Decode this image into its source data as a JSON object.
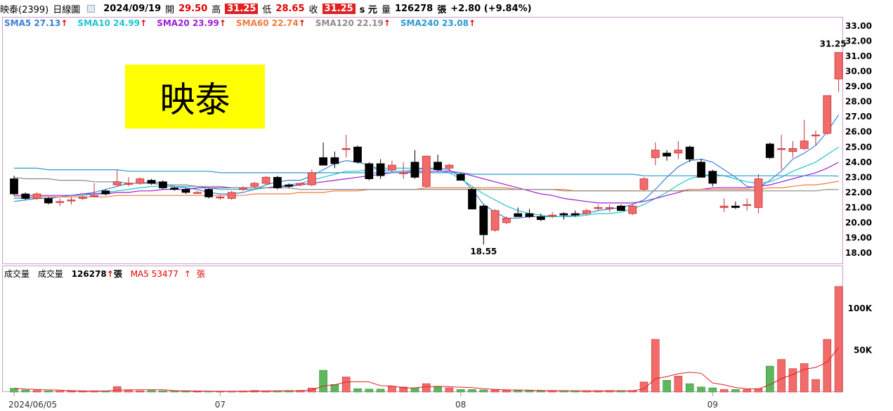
{
  "header": {
    "stock": "映泰(2399)",
    "period": "日線圖",
    "date": "2024/09/19",
    "open_label": "開",
    "open": "29.50",
    "high_label": "高",
    "high": "31.25",
    "low_label": "低",
    "low": "28.65",
    "close_label": "收",
    "close": "31.25",
    "close_suffix": "s 元",
    "volume_label": "量",
    "volume": "126278",
    "volume_unit": "張",
    "change": "+2.80 (+9.84%)"
  },
  "stamp": "映泰",
  "sma_legend": [
    {
      "text": "SMA5 27.13",
      "color": "#3a7fd8"
    },
    {
      "text": "SMA10 24.99",
      "color": "#1fc4cf"
    },
    {
      "text": "SMA20 23.99",
      "color": "#9b1fd1"
    },
    {
      "text": "SMA60 22.74",
      "color": "#f07b3a"
    },
    {
      "text": "SMA120 22.19",
      "color": "#8c8c8c"
    },
    {
      "text": "SMA240 23.08",
      "color": "#2a9ad0"
    }
  ],
  "volume_legend": {
    "title": "成交量",
    "vol_label": "成交量",
    "vol_value": "126278",
    "vol_unit": "張",
    "ma_label": "MA5 53477",
    "ma_unit": "張"
  },
  "up_arrow": "↑",
  "colors": {
    "up": "#f26b6b",
    "down": "#000000",
    "vol_up": "#f26b6b",
    "vol_down": "#5cb85c",
    "ma5_vol": "#e02020"
  },
  "chart_data": {
    "type": "candlestick",
    "price_axis": {
      "min": 18,
      "max": 33,
      "ticks": [
        "18.00",
        "19.00",
        "20.00",
        "21.00",
        "22.00",
        "23.00",
        "24.00",
        "25.00",
        "26.00",
        "27.00",
        "28.00",
        "29.00",
        "30.00",
        "31.00",
        "32.00",
        "33.00"
      ]
    },
    "volume_axis": {
      "ticks": [
        "50K",
        "100K"
      ],
      "tick_values": [
        50000,
        100000
      ]
    },
    "x_ticks": [
      {
        "label": "2024/06/05",
        "index": 0
      },
      {
        "label": "07",
        "index": 18
      },
      {
        "label": "08",
        "index": 39
      },
      {
        "label": "09",
        "index": 61
      }
    ],
    "annotations": [
      {
        "text": "31.25",
        "index": 72,
        "value": 31.25
      },
      {
        "text": "18.55",
        "index": 41,
        "value": 18.55
      }
    ],
    "candles": [
      {
        "o": 22.9,
        "h": 23.1,
        "l": 21.8,
        "c": 21.9
      },
      {
        "o": 21.9,
        "h": 22.0,
        "l": 21.5,
        "c": 21.6
      },
      {
        "o": 21.6,
        "h": 22.0,
        "l": 21.5,
        "c": 21.9
      },
      {
        "o": 21.6,
        "h": 21.7,
        "l": 21.2,
        "c": 21.3
      },
      {
        "o": 21.4,
        "h": 21.6,
        "l": 21.1,
        "c": 21.4
      },
      {
        "o": 21.5,
        "h": 21.7,
        "l": 21.2,
        "c": 21.5
      },
      {
        "o": 21.6,
        "h": 21.8,
        "l": 21.5,
        "c": 21.7
      },
      {
        "o": 21.8,
        "h": 22.6,
        "l": 21.7,
        "c": 21.8
      },
      {
        "o": 22.1,
        "h": 22.2,
        "l": 21.8,
        "c": 21.9
      },
      {
        "o": 22.5,
        "h": 23.5,
        "l": 22.4,
        "c": 22.7
      },
      {
        "o": 22.6,
        "h": 23.0,
        "l": 22.4,
        "c": 22.6
      },
      {
        "o": 22.6,
        "h": 23.0,
        "l": 22.5,
        "c": 22.9
      },
      {
        "o": 22.8,
        "h": 22.9,
        "l": 22.5,
        "c": 22.6
      },
      {
        "o": 22.7,
        "h": 22.8,
        "l": 22.2,
        "c": 22.3
      },
      {
        "o": 22.3,
        "h": 22.4,
        "l": 22.1,
        "c": 22.2
      },
      {
        "o": 22.2,
        "h": 22.3,
        "l": 21.9,
        "c": 22.0
      },
      {
        "o": 22.0,
        "h": 22.1,
        "l": 21.9,
        "c": 22.0
      },
      {
        "o": 22.2,
        "h": 22.3,
        "l": 21.6,
        "c": 21.7
      },
      {
        "o": 21.7,
        "h": 21.8,
        "l": 21.5,
        "c": 21.7
      },
      {
        "o": 21.6,
        "h": 22.1,
        "l": 21.5,
        "c": 22.0
      },
      {
        "o": 22.2,
        "h": 22.4,
        "l": 22.1,
        "c": 22.3
      },
      {
        "o": 22.4,
        "h": 22.7,
        "l": 22.2,
        "c": 22.6
      },
      {
        "o": 22.6,
        "h": 23.1,
        "l": 22.5,
        "c": 23.0
      },
      {
        "o": 23.0,
        "h": 23.1,
        "l": 22.2,
        "c": 22.3
      },
      {
        "o": 22.5,
        "h": 22.6,
        "l": 22.3,
        "c": 22.4
      },
      {
        "o": 22.5,
        "h": 22.6,
        "l": 22.4,
        "c": 22.6
      },
      {
        "o": 22.5,
        "h": 23.5,
        "l": 22.4,
        "c": 23.3
      },
      {
        "o": 24.3,
        "h": 25.3,
        "l": 23.8,
        "c": 23.8
      },
      {
        "o": 24.3,
        "h": 24.7,
        "l": 23.6,
        "c": 23.9
      },
      {
        "o": 24.9,
        "h": 25.8,
        "l": 24.3,
        "c": 24.9
      },
      {
        "o": 25.0,
        "h": 25.1,
        "l": 23.9,
        "c": 24.0
      },
      {
        "o": 23.9,
        "h": 24.0,
        "l": 22.8,
        "c": 22.9
      },
      {
        "o": 23.9,
        "h": 24.2,
        "l": 22.9,
        "c": 23.1
      },
      {
        "o": 23.5,
        "h": 24.1,
        "l": 23.3,
        "c": 23.8
      },
      {
        "o": 23.3,
        "h": 24.0,
        "l": 22.9,
        "c": 23.3
      },
      {
        "o": 24.0,
        "h": 24.8,
        "l": 22.9,
        "c": 23.0
      },
      {
        "o": 22.4,
        "h": 24.4,
        "l": 22.3,
        "c": 24.4
      },
      {
        "o": 24.0,
        "h": 24.5,
        "l": 23.4,
        "c": 23.5
      },
      {
        "o": 23.6,
        "h": 23.9,
        "l": 23.4,
        "c": 23.8
      },
      {
        "o": 23.2,
        "h": 23.3,
        "l": 22.8,
        "c": 22.8
      },
      {
        "o": 22.2,
        "h": 22.3,
        "l": 20.9,
        "c": 20.9
      },
      {
        "o": 21.1,
        "h": 21.2,
        "l": 18.55,
        "c": 19.2
      },
      {
        "o": 19.5,
        "h": 20.9,
        "l": 19.4,
        "c": 20.8
      },
      {
        "o": 20.0,
        "h": 20.4,
        "l": 19.9,
        "c": 20.3
      },
      {
        "o": 20.6,
        "h": 21.0,
        "l": 20.4,
        "c": 20.4
      },
      {
        "o": 20.6,
        "h": 20.9,
        "l": 20.3,
        "c": 20.4
      },
      {
        "o": 20.4,
        "h": 20.6,
        "l": 20.1,
        "c": 20.2
      },
      {
        "o": 20.5,
        "h": 20.7,
        "l": 20.3,
        "c": 20.5
      },
      {
        "o": 20.6,
        "h": 20.7,
        "l": 20.2,
        "c": 20.5
      },
      {
        "o": 20.6,
        "h": 20.8,
        "l": 20.4,
        "c": 20.5
      },
      {
        "o": 20.6,
        "h": 20.9,
        "l": 20.5,
        "c": 20.8
      },
      {
        "o": 21.0,
        "h": 21.2,
        "l": 20.8,
        "c": 21.0
      },
      {
        "o": 21.0,
        "h": 21.2,
        "l": 20.7,
        "c": 21.0
      },
      {
        "o": 21.1,
        "h": 21.2,
        "l": 20.8,
        "c": 20.8
      },
      {
        "o": 20.6,
        "h": 21.2,
        "l": 20.5,
        "c": 21.1
      },
      {
        "o": 22.2,
        "h": 23.0,
        "l": 22.1,
        "c": 22.9
      },
      {
        "o": 24.3,
        "h": 25.3,
        "l": 23.8,
        "c": 24.8
      },
      {
        "o": 24.6,
        "h": 24.8,
        "l": 24.1,
        "c": 24.4
      },
      {
        "o": 24.6,
        "h": 25.4,
        "l": 24.2,
        "c": 24.8
      },
      {
        "o": 25.0,
        "h": 25.1,
        "l": 24.0,
        "c": 24.2
      },
      {
        "o": 24.0,
        "h": 24.2,
        "l": 23.0,
        "c": 23.0
      },
      {
        "o": 23.4,
        "h": 23.5,
        "l": 22.4,
        "c": 22.6
      },
      {
        "o": 21.0,
        "h": 21.6,
        "l": 20.7,
        "c": 21.1
      },
      {
        "o": 21.1,
        "h": 21.4,
        "l": 20.9,
        "c": 21.0
      },
      {
        "o": 21.2,
        "h": 21.6,
        "l": 20.8,
        "c": 21.2
      },
      {
        "o": 21.0,
        "h": 23.2,
        "l": 20.6,
        "c": 22.9
      },
      {
        "o": 25.2,
        "h": 25.3,
        "l": 24.2,
        "c": 24.3
      },
      {
        "o": 24.9,
        "h": 25.8,
        "l": 23.5,
        "c": 24.9
      },
      {
        "o": 24.7,
        "h": 25.4,
        "l": 24.3,
        "c": 24.9
      },
      {
        "o": 24.9,
        "h": 26.8,
        "l": 24.8,
        "c": 25.4
      },
      {
        "o": 25.8,
        "h": 26.1,
        "l": 25.1,
        "c": 25.8
      },
      {
        "o": 25.9,
        "h": 28.4,
        "l": 25.8,
        "c": 28.4
      },
      {
        "o": 29.5,
        "h": 31.25,
        "l": 28.65,
        "c": 31.25
      }
    ],
    "volume": [
      4500,
      2500,
      2000,
      1500,
      1200,
      1000,
      1000,
      1500,
      1500,
      6500,
      2500,
      1500,
      1800,
      1500,
      1200,
      1000,
      800,
      1000,
      800,
      1000,
      1200,
      1800,
      1500,
      1500,
      1800,
      2000,
      4800,
      26000,
      9000,
      18000,
      4000,
      3500,
      3500,
      7000,
      6000,
      5000,
      10000,
      6000,
      5000,
      3000,
      3000,
      2500,
      2500,
      2000,
      2000,
      1800,
      1500,
      1500,
      1500,
      1500,
      1500,
      1500,
      1800,
      1500,
      1500,
      12000,
      63000,
      14000,
      19000,
      10000,
      6000,
      5000,
      3000,
      3000,
      3000,
      4000,
      31000,
      39000,
      28000,
      34000,
      15000,
      63000,
      126278
    ],
    "series": [
      {
        "name": "SMA5",
        "values": [
          21.4,
          21.5,
          21.6,
          21.6,
          21.7,
          21.8,
          21.9,
          22.0,
          22.2,
          22.4,
          22.6,
          22.6,
          22.7,
          22.6,
          22.4,
          22.3,
          22.2,
          22.0,
          21.9,
          21.9,
          22.0,
          22.2,
          22.5,
          22.7,
          22.8,
          22.8,
          23.1,
          23.5,
          23.9,
          24.1,
          24.0,
          23.8,
          23.5,
          23.4,
          23.4,
          23.5,
          23.6,
          23.6,
          23.5,
          23.0,
          22.2,
          21.2,
          20.7,
          20.3,
          20.3,
          20.4,
          20.4,
          20.4,
          20.4,
          20.5,
          20.6,
          20.8,
          20.9,
          21.0,
          21.2,
          21.5,
          22.2,
          23.0,
          23.7,
          24.1,
          24.2,
          24.0,
          23.5,
          23.0,
          22.4,
          22.3,
          22.8,
          23.4,
          24.2,
          24.6,
          25.1,
          26.0,
          27.13
        ]
      },
      {
        "name": "SMA10",
        "values": [
          21.6,
          21.6,
          21.7,
          21.7,
          21.7,
          21.8,
          21.8,
          21.9,
          22.0,
          22.1,
          22.2,
          22.3,
          22.4,
          22.4,
          22.4,
          22.4,
          22.4,
          22.3,
          22.2,
          22.2,
          22.2,
          22.2,
          22.3,
          22.4,
          22.5,
          22.6,
          22.8,
          23.0,
          23.2,
          23.4,
          23.4,
          23.5,
          23.6,
          23.6,
          23.6,
          23.6,
          23.6,
          23.5,
          23.3,
          22.9,
          22.4,
          21.9,
          21.5,
          21.1,
          20.8,
          20.6,
          20.5,
          20.4,
          20.4,
          20.4,
          20.5,
          20.6,
          20.6,
          20.7,
          20.9,
          21.2,
          21.6,
          22.0,
          22.5,
          22.9,
          23.1,
          23.2,
          23.1,
          22.9,
          22.7,
          22.6,
          22.7,
          23.0,
          23.4,
          23.7,
          24.0,
          24.5,
          24.99
        ]
      },
      {
        "name": "SMA20",
        "values": [
          21.8,
          21.8,
          21.8,
          21.8,
          21.8,
          21.8,
          21.9,
          21.9,
          21.9,
          22.0,
          22.0,
          22.1,
          22.1,
          22.2,
          22.2,
          22.2,
          22.3,
          22.3,
          22.3,
          22.3,
          22.3,
          22.3,
          22.3,
          22.4,
          22.4,
          22.5,
          22.6,
          22.7,
          22.8,
          22.9,
          23.0,
          23.1,
          23.2,
          23.3,
          23.3,
          23.4,
          23.4,
          23.4,
          23.4,
          23.3,
          23.1,
          22.9,
          22.7,
          22.5,
          22.3,
          22.1,
          21.9,
          21.8,
          21.6,
          21.5,
          21.4,
          21.3,
          21.3,
          21.3,
          21.3,
          21.4,
          21.6,
          21.8,
          22.0,
          22.2,
          22.2,
          22.3,
          22.3,
          22.3,
          22.3,
          22.4,
          22.5,
          22.7,
          22.9,
          23.1,
          23.3,
          23.6,
          23.99
        ]
      },
      {
        "name": "SMA60",
        "values": [
          21.7,
          21.7,
          21.7,
          21.7,
          21.7,
          21.7,
          21.7,
          21.7,
          21.7,
          21.8,
          21.8,
          21.8,
          21.8,
          21.8,
          21.8,
          21.8,
          21.8,
          21.8,
          21.8,
          21.8,
          21.8,
          21.9,
          21.9,
          21.9,
          21.9,
          22.0,
          22.0,
          22.0,
          22.1,
          22.1,
          22.1,
          22.2,
          22.2,
          22.2,
          22.2,
          22.2,
          22.3,
          22.3,
          22.3,
          22.3,
          22.3,
          22.3,
          22.3,
          22.3,
          22.2,
          22.2,
          22.2,
          22.2,
          22.2,
          22.1,
          22.1,
          22.1,
          22.1,
          22.1,
          22.1,
          22.1,
          22.1,
          22.1,
          22.1,
          22.2,
          22.2,
          22.2,
          22.2,
          22.2,
          22.2,
          22.2,
          22.3,
          22.3,
          22.4,
          22.5,
          22.5,
          22.6,
          22.74
        ]
      },
      {
        "name": "SMA120",
        "values": [
          23.0,
          22.9,
          22.9,
          22.9,
          22.8,
          22.8,
          22.8,
          22.7,
          22.7,
          22.7,
          22.6,
          22.6,
          22.6,
          22.5,
          22.5,
          22.5,
          22.4,
          22.4,
          22.4,
          22.3,
          22.3,
          22.3,
          22.3,
          22.3,
          22.3,
          22.2,
          22.2,
          22.2,
          22.2,
          22.2,
          22.2,
          22.2,
          22.2,
          22.2,
          22.2,
          22.2,
          22.2,
          22.2,
          22.2,
          22.2,
          22.2,
          22.2,
          22.2,
          22.2,
          22.2,
          22.2,
          22.2,
          22.2,
          22.1,
          22.1,
          22.1,
          22.1,
          22.1,
          22.1,
          22.1,
          22.1,
          22.1,
          22.1,
          22.1,
          22.1,
          22.1,
          22.1,
          22.1,
          22.1,
          22.1,
          22.1,
          22.1,
          22.1,
          22.1,
          22.1,
          22.1,
          22.2,
          22.19
        ]
      },
      {
        "name": "SMA240",
        "values": [
          23.6,
          23.6,
          23.6,
          23.5,
          23.5,
          23.5,
          23.5,
          23.5,
          23.5,
          23.5,
          23.4,
          23.4,
          23.4,
          23.4,
          23.4,
          23.4,
          23.4,
          23.4,
          23.3,
          23.3,
          23.3,
          23.3,
          23.3,
          23.3,
          23.3,
          23.3,
          23.3,
          23.3,
          23.3,
          23.3,
          23.3,
          23.3,
          23.3,
          23.3,
          23.3,
          23.3,
          23.3,
          23.3,
          23.3,
          23.3,
          23.2,
          23.2,
          23.2,
          23.2,
          23.2,
          23.2,
          23.2,
          23.2,
          23.2,
          23.2,
          23.2,
          23.2,
          23.2,
          23.2,
          23.2,
          23.1,
          23.1,
          23.1,
          23.1,
          23.1,
          23.1,
          23.1,
          23.1,
          23.1,
          23.1,
          23.1,
          23.1,
          23.1,
          23.1,
          23.1,
          23.1,
          23.1,
          23.08
        ]
      }
    ]
  }
}
